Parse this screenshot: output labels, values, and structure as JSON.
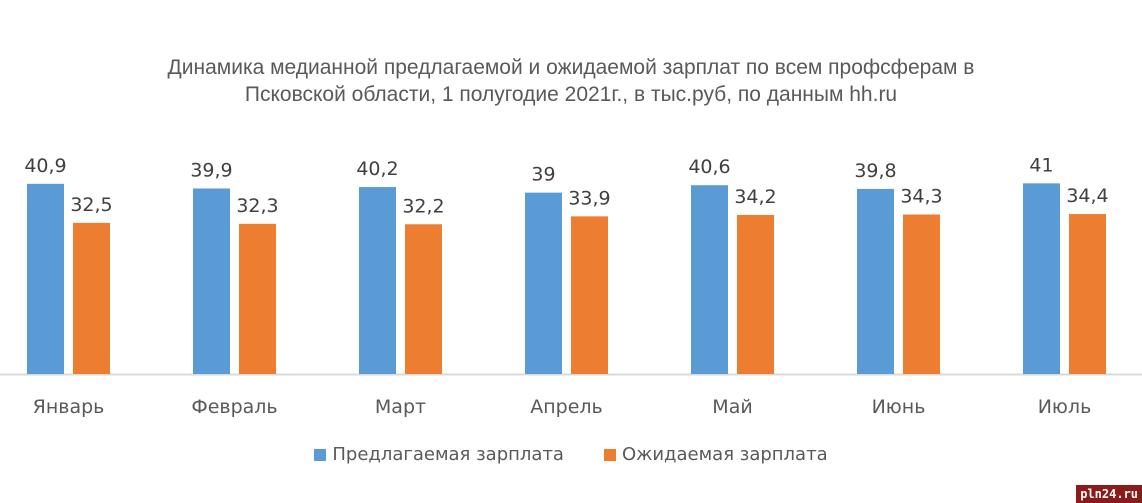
{
  "chart_data": {
    "type": "bar",
    "title_line1": "Динамика медианной предлагаемой и ожидаемой зарплат по всем профсферам в",
    "title_line2": "Псковской области, 1 полугодие 2021г., в тыс.руб, по данным hh.ru",
    "categories": [
      "Январь",
      "Февраль",
      "Март",
      "Апрель",
      "Май",
      "Июнь",
      "Июль"
    ],
    "series": [
      {
        "name": "Предлагаемая зарплата",
        "color": "#5b9bd5",
        "values": [
          40.9,
          39.9,
          40.2,
          39,
          40.6,
          39.8,
          41
        ],
        "labels": [
          "40,9",
          "39,9",
          "40,2",
          "39",
          "40,6",
          "39,8",
          "41"
        ]
      },
      {
        "name": "Ожидаемая зарплата",
        "color": "#ed7d31",
        "values": [
          32.5,
          32.3,
          32.2,
          33.9,
          34.2,
          34.3,
          34.4
        ],
        "labels": [
          "32,5",
          "32,3",
          "32,2",
          "33,9",
          "34,2",
          "34,3",
          "34,4"
        ]
      }
    ],
    "xlabel": "",
    "ylabel": "",
    "ylim": [
      0,
      45
    ],
    "grid": false,
    "legend": "bottom"
  },
  "watermark": "pln24.ru"
}
